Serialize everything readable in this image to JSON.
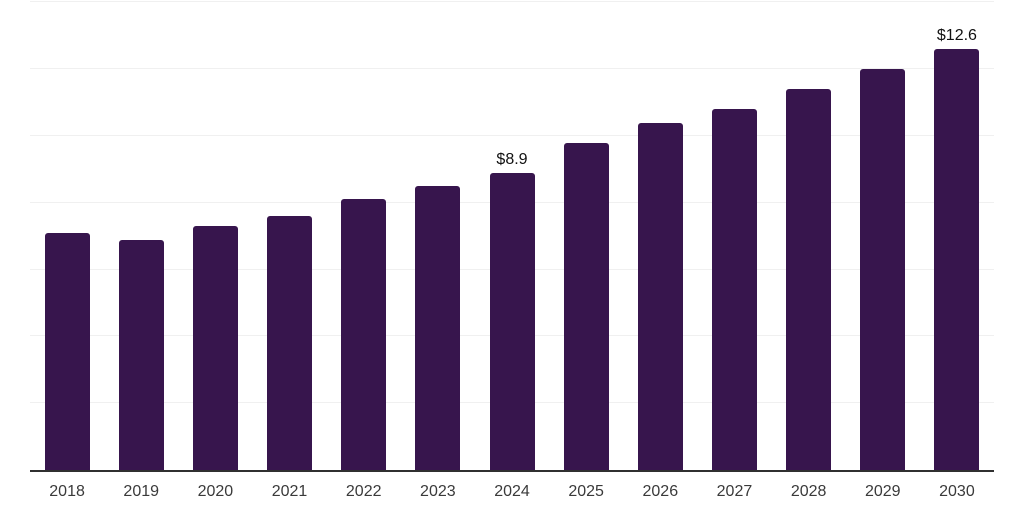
{
  "chart_data": {
    "type": "bar",
    "title": "",
    "xlabel": "",
    "ylabel": "",
    "categories": [
      "2018",
      "2019",
      "2020",
      "2021",
      "2022",
      "2023",
      "2024",
      "2025",
      "2026",
      "2027",
      "2028",
      "2029",
      "2030"
    ],
    "values": [
      7.1,
      6.9,
      7.3,
      7.6,
      8.1,
      8.5,
      8.9,
      9.8,
      10.4,
      10.8,
      11.4,
      12.0,
      12.6
    ],
    "value_labels": [
      "",
      "",
      "",
      "",
      "",
      "",
      "$8.9",
      "",
      "",
      "",
      "",
      "",
      "$12.6"
    ],
    "ylim": [
      0,
      14
    ],
    "y_gridline_step": 2,
    "grid": "horizontal",
    "legend": "none",
    "colors": {
      "bar": "#37154D",
      "axis_line": "#303030",
      "gridline": "#F0F0F0",
      "tick_label": "#3A3A3A",
      "value_label": "#111111",
      "background": "#FFFFFF"
    }
  }
}
